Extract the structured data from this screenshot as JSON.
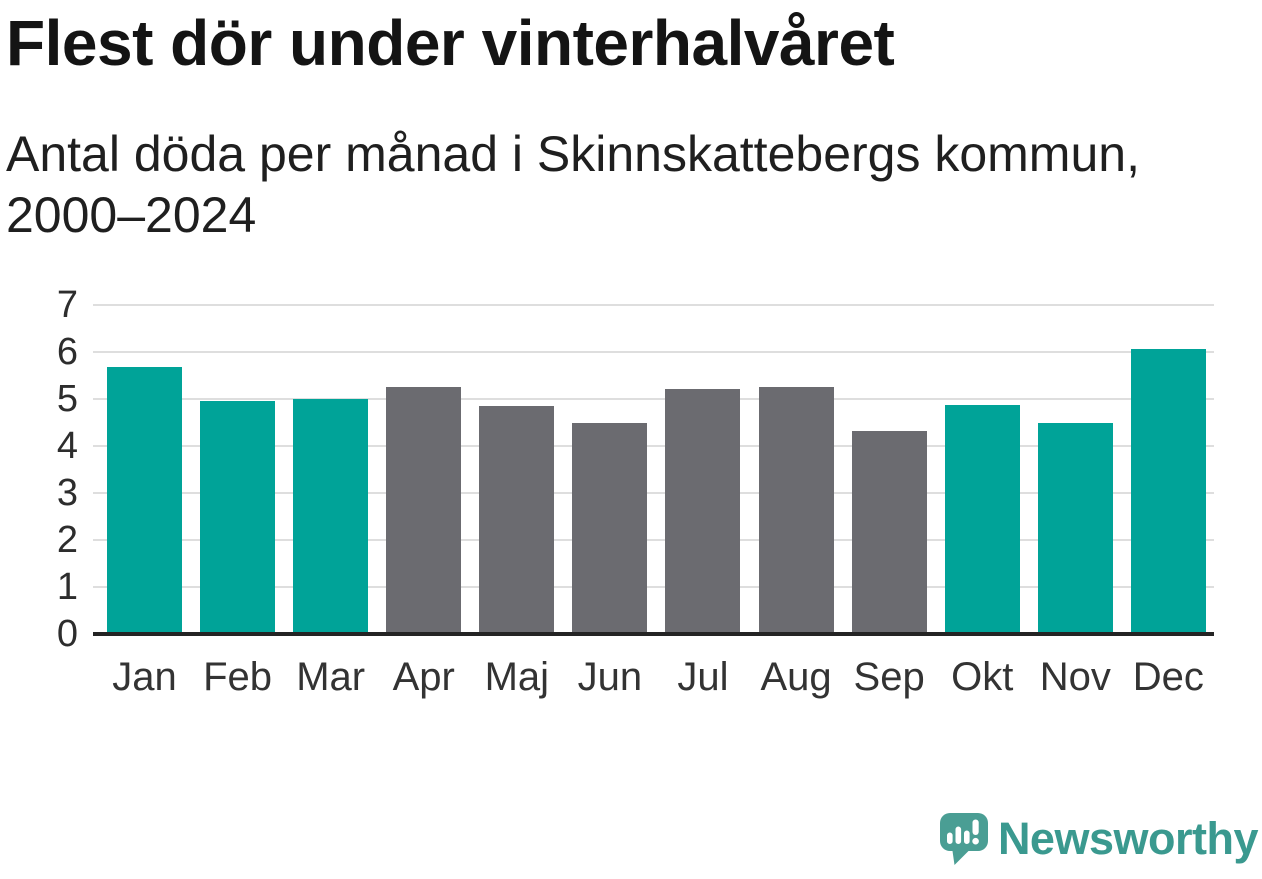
{
  "title": "Flest dör under vinterhalvåret",
  "subtitle": "Antal döda per månad i Skinnskattebergs kommun, 2000–2024",
  "chart_data": {
    "type": "bar",
    "title": "Flest dör under vinterhalvåret",
    "subtitle": "Antal döda per månad i Skinnskattebergs kommun, 2000–2024",
    "categories": [
      "Jan",
      "Feb",
      "Mar",
      "Apr",
      "Maj",
      "Jun",
      "Jul",
      "Aug",
      "Sep",
      "Okt",
      "Nov",
      "Dec"
    ],
    "values": [
      5.68,
      4.95,
      5.0,
      5.25,
      4.85,
      4.49,
      5.21,
      5.25,
      4.32,
      4.88,
      4.49,
      6.06
    ],
    "bar_groups": [
      "winter",
      "winter",
      "winter",
      "summer",
      "summer",
      "summer",
      "summer",
      "summer",
      "summer",
      "winter",
      "winter",
      "winter"
    ],
    "xlabel": "",
    "ylabel": "",
    "ylim": [
      0,
      7
    ],
    "yticks": [
      0,
      1,
      2,
      3,
      4,
      5,
      6,
      7
    ],
    "grid": true,
    "legend": false
  },
  "colors": {
    "background": "#ffffff",
    "winter_bar": "#00a398",
    "summer_bar": "#6b6b70",
    "gridline": "#dedede",
    "axis_line": "#242424",
    "title_text": "#141414",
    "subtitle_text": "#1f1f1f",
    "tick_text": "#2d2d2d",
    "label_text": "#333333",
    "logo_icon": "#4a9e94",
    "logo_text": "#3a998f"
  },
  "branding": {
    "name": "Newsworthy",
    "icon": "newsworthy-speech-bubble-bar-chart-icon"
  }
}
